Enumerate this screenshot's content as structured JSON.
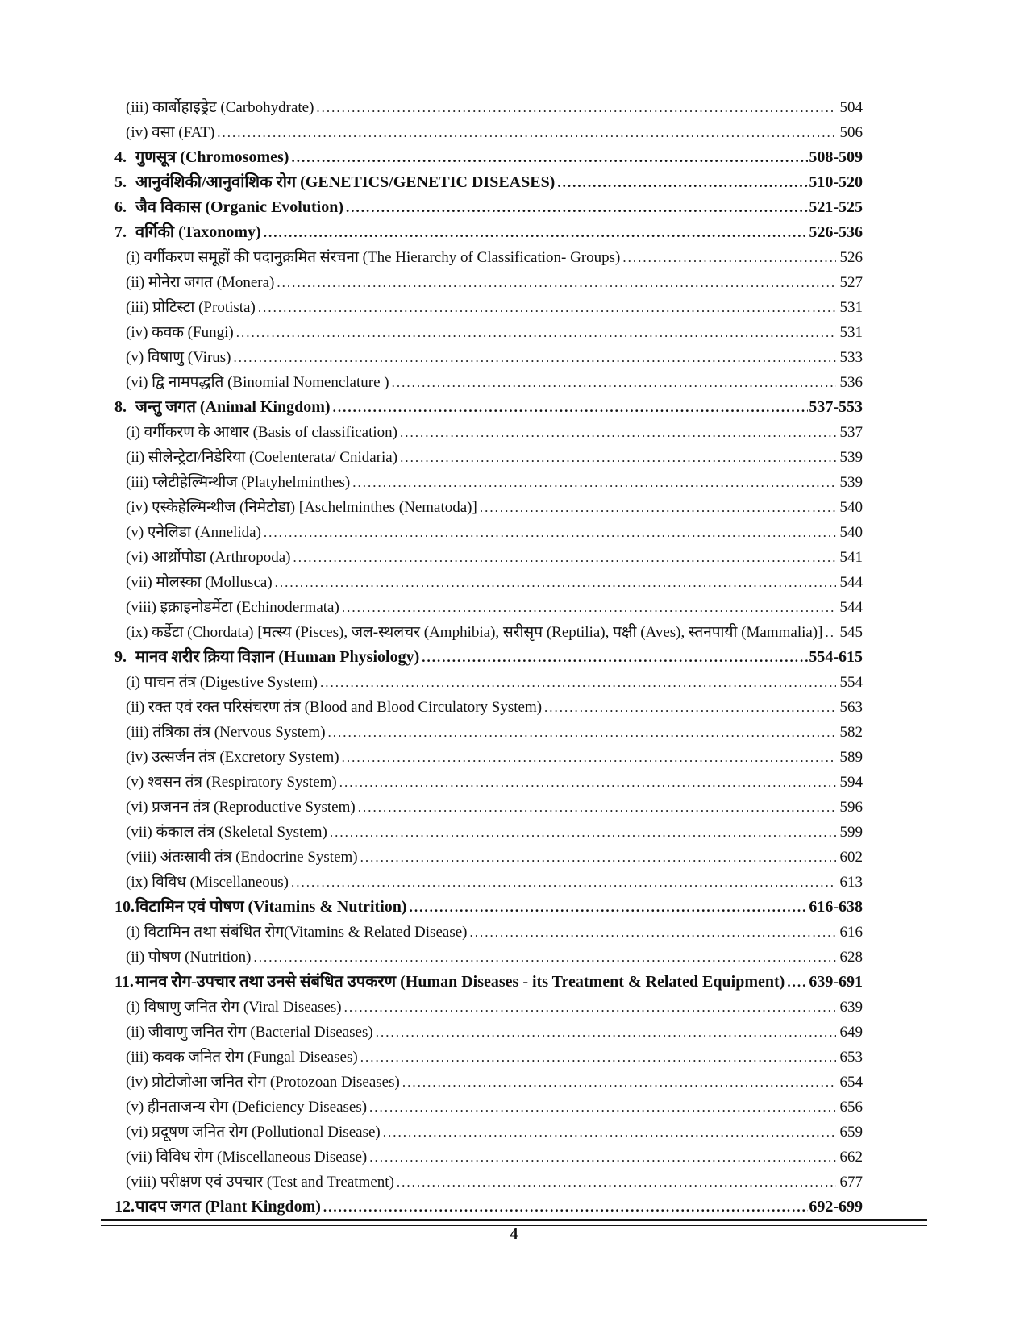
{
  "page": {
    "footer_page_number": "4",
    "text_color": "#111111",
    "background_color": "#ffffff"
  },
  "toc": {
    "entries": [
      {
        "type": "sub",
        "num": "",
        "label": "(iii) कार्बोहाइड्रेट  (Carbohydrate)",
        "page": "504"
      },
      {
        "type": "sub",
        "num": "",
        "label": "(iv) वसा (FAT)",
        "page": "506"
      },
      {
        "type": "chapter",
        "num": "4.",
        "label": "गुणसूत्र (Chromosomes)",
        "page": "508-509"
      },
      {
        "type": "chapter",
        "num": "5.",
        "label": "आनुवंशिकी/आनुवांशिक रोग (GENETICS/GENETIC DISEASES)",
        "page": "510-520"
      },
      {
        "type": "chapter",
        "num": "6.",
        "label": "जैव विकास (Organic Evolution)",
        "page": "521-525"
      },
      {
        "type": "chapter",
        "num": "7.",
        "label": "वर्गिकी (Taxonomy)",
        "page": "526-536"
      },
      {
        "type": "sub",
        "num": "",
        "label": "(i) वर्गीकरण समूहों की पदानुक्रमित संरचना (The Hierarchy of Classification- Groups)",
        "page": "526"
      },
      {
        "type": "sub",
        "num": "",
        "label": "(ii) मोनेरा जगत (Monera)",
        "page": "527"
      },
      {
        "type": "sub",
        "num": "",
        "label": "(iii) प्रोटिस्टा (Protista)",
        "page": "531"
      },
      {
        "type": "sub",
        "num": "",
        "label": "(iv) कवक (Fungi)",
        "page": "531"
      },
      {
        "type": "sub",
        "num": "",
        "label": "(v) विषाणु (Virus)",
        "page": "533"
      },
      {
        "type": "sub",
        "num": "",
        "label": "(vi) द्वि नामपद्धति (Binomial Nomenclature )",
        "page": "536"
      },
      {
        "type": "chapter",
        "num": "8.",
        "label": "जन्तु जगत (Animal Kingdom)",
        "page": "537-553"
      },
      {
        "type": "sub",
        "num": "",
        "label": "(i) वर्गीकरण के आधार (Basis of classification)",
        "page": "537"
      },
      {
        "type": "sub",
        "num": "",
        "label": "(ii) सीलेन्ट्रेटा/निडेरिया (Coelenterata/ Cnidaria)",
        "page": "539"
      },
      {
        "type": "sub",
        "num": "",
        "label": "(iii) प्लेटीहेल्मिन्थीज (Platyhelminthes)",
        "page": "539"
      },
      {
        "type": "sub",
        "num": "",
        "label": "(iv) एस्केहेल्मिन्थीज (निमेटोडा) [Aschelminthes (Nematoda)]",
        "page": "540"
      },
      {
        "type": "sub",
        "num": "",
        "label": "(v) एनेलिडा (Annelida)",
        "page": "540"
      },
      {
        "type": "sub",
        "num": "",
        "label": "(vi) आर्थ्रोपोडा (Arthropoda)",
        "page": "541"
      },
      {
        "type": "sub",
        "num": "",
        "label": "(vii) मोलस्का (Mollusca)",
        "page": "544"
      },
      {
        "type": "sub",
        "num": "",
        "label": "(viii) इक्राइनोडर्मेटा (Echinodermata)",
        "page": "544"
      },
      {
        "type": "sub",
        "num": "",
        "label": "(ix) कर्डेटा (Chordata) [मत्स्य (Pisces), जल-स्थलचर (Amphibia), सरीसृप (Reptilia), पक्षी (Aves), स्तनपायी (Mammalia)]",
        "page": "545"
      },
      {
        "type": "chapter",
        "num": "9.",
        "label": "मानव शरीर क्रिया विज्ञान (Human Physiology)",
        "page": "554-615"
      },
      {
        "type": "sub",
        "num": "",
        "label": "(i) पाचन तंत्र (Digestive System)",
        "page": "554"
      },
      {
        "type": "sub",
        "num": "",
        "label": "(ii) रक्त एवं रक्त परिसंचरण तंत्र (Blood and Blood Circulatory System)",
        "page": "563"
      },
      {
        "type": "sub",
        "num": "",
        "label": "(iii) तंत्रिका तंत्र (Nervous System)",
        "page": "582"
      },
      {
        "type": "sub",
        "num": "",
        "label": "(iv) उत्सर्जन तंत्र (Excretory System)",
        "page": "589"
      },
      {
        "type": "sub",
        "num": "",
        "label": "(v) श्वसन तंत्र (Respiratory System)",
        "page": "594"
      },
      {
        "type": "sub",
        "num": "",
        "label": "(vi) प्रजनन तंत्र (Reproductive System)",
        "page": "596"
      },
      {
        "type": "sub",
        "num": "",
        "label": "(vii) कंकाल तंत्र (Skeletal System)",
        "page": "599"
      },
      {
        "type": "sub",
        "num": "",
        "label": "(viii) अंतःस्रावी तंत्र (Endocrine System)",
        "page": "602"
      },
      {
        "type": "sub",
        "num": "",
        "label": "(ix) विविध (Miscellaneous)",
        "page": "613"
      },
      {
        "type": "chapter",
        "num": "10.",
        "label": "विटामिन एवं पोषण (Vitamins & Nutrition)",
        "page": "616-638"
      },
      {
        "type": "sub",
        "num": "",
        "label": "(i) विटामिन तथा संबंधित रोग(Vitamins & Related Disease)",
        "page": "616"
      },
      {
        "type": "sub",
        "num": "",
        "label": "(ii) पोषण (Nutrition)",
        "page": "628"
      },
      {
        "type": "chapter",
        "num": "11.",
        "label": "मानव रोग-उपचार तथा उनसे संबंधित उपकरण (Human Diseases - its Treatment & Related Equipment)",
        "page": "639-691"
      },
      {
        "type": "sub",
        "num": "",
        "label": "(i) विषाणु जनित रोग (Viral Diseases)",
        "page": "639"
      },
      {
        "type": "sub",
        "num": "",
        "label": "(ii) जीवाणु जनित रोग (Bacterial Diseases)",
        "page": "649"
      },
      {
        "type": "sub",
        "num": "",
        "label": "(iii) कवक जनित रोग (Fungal Diseases)",
        "page": "653"
      },
      {
        "type": "sub",
        "num": "",
        "label": "(iv) प्रोटोजोआ जनित रोग (Protozoan Diseases)",
        "page": "654"
      },
      {
        "type": "sub",
        "num": "",
        "label": "(v) हीनताजन्य रोग (Deficiency Diseases)",
        "page": "656"
      },
      {
        "type": "sub",
        "num": "",
        "label": "(vi) प्रदूषण जनित रोग (Pollutional Disease)",
        "page": "659"
      },
      {
        "type": "sub",
        "num": "",
        "label": "(vii) विविध रोग (Miscellaneous Disease)",
        "page": "662"
      },
      {
        "type": "sub",
        "num": "",
        "label": "(viii) परीक्षण एवं उपचार (Test and Treatment)",
        "page": "677"
      },
      {
        "type": "chapter",
        "num": "12.",
        "label": "पादप जगत (Plant Kingdom)",
        "page": "692-699"
      }
    ]
  }
}
